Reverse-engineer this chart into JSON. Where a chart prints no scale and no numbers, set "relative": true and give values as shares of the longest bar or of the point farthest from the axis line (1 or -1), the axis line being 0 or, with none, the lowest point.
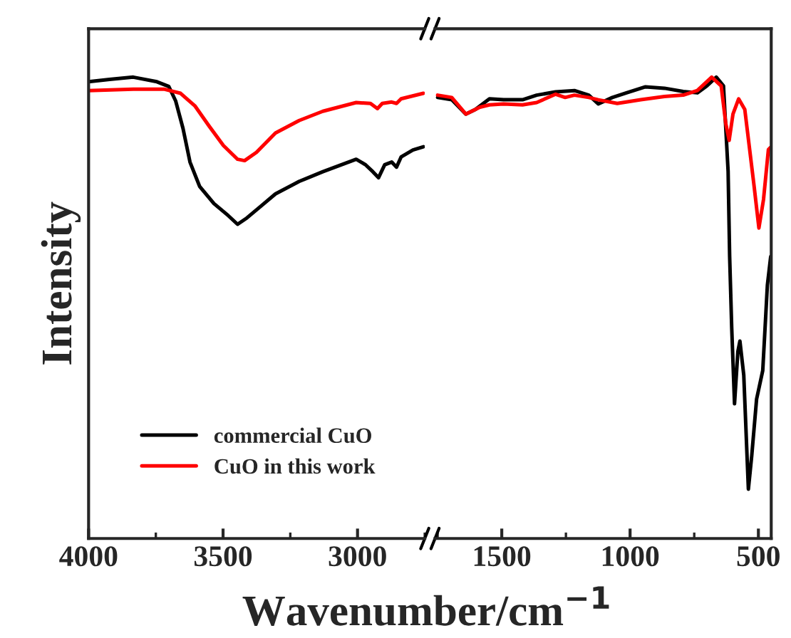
{
  "chart_data": [
    {
      "type": "line",
      "relative": true,
      "ylabel": "Intensity",
      "xlabel": "Wavenumber/cm$^{−1}$",
      "xlim": [
        4000,
        2750
      ],
      "xticks": [
        4000,
        3500,
        3000
      ],
      "legend": "bottom left",
      "line_style": "solid",
      "marker": "none",
      "series": [
        {
          "name": "commercial CuO",
          "color": "#000000",
          "x": [
            4000,
            3922,
            3834,
            3746,
            3702,
            3676,
            3649,
            3623,
            3587,
            3534,
            3481,
            3446,
            3411,
            3358,
            3305,
            3217,
            3129,
            3005,
            2970,
            2943,
            2922,
            2899,
            2873,
            2855,
            2838,
            2794,
            2755
          ],
          "values": [
            0.99,
            0.995,
            1.0,
            0.99,
            0.98,
            0.948,
            0.889,
            0.816,
            0.763,
            0.726,
            0.7,
            0.681,
            0.695,
            0.721,
            0.747,
            0.774,
            0.795,
            0.822,
            0.81,
            0.795,
            0.782,
            0.81,
            0.816,
            0.805,
            0.827,
            0.842,
            0.849
          ]
        },
        {
          "name": "CuO in this work",
          "color": "#ff0000",
          "x": [
            4000,
            3834,
            3720,
            3658,
            3605,
            3552,
            3499,
            3446,
            3420,
            3376,
            3305,
            3217,
            3129,
            3005,
            2952,
            2926,
            2908,
            2873,
            2855,
            2838,
            2755
          ],
          "values": [
            0.971,
            0.974,
            0.974,
            0.965,
            0.938,
            0.894,
            0.852,
            0.822,
            0.819,
            0.837,
            0.879,
            0.906,
            0.926,
            0.945,
            0.943,
            0.932,
            0.943,
            0.946,
            0.943,
            0.953,
            0.965
          ]
        }
      ]
    },
    {
      "type": "line",
      "relative": true,
      "xlim": [
        1760,
        450
      ],
      "xticks": [
        1500,
        1000,
        500
      ],
      "tick_labels": "x",
      "line_style": "solid",
      "marker": "none",
      "series": [
        {
          "color": "#000000",
          "x": [
            1750,
            1695,
            1640,
            1603,
            1548,
            1493,
            1419,
            1364,
            1290,
            1217,
            1161,
            1124,
            1069,
            1014,
            940,
            866,
            793,
            738,
            701,
            664,
            636,
            618,
            612,
            604,
            593,
            580,
            572,
            557,
            539,
            526,
            507,
            483,
            465,
            452
          ],
          "values": [
            0.956,
            0.951,
            0.92,
            0.93,
            0.953,
            0.951,
            0.951,
            0.961,
            0.968,
            0.971,
            0.961,
            0.942,
            0.956,
            0.966,
            0.979,
            0.976,
            0.969,
            0.966,
            0.981,
            1.0,
            0.981,
            0.796,
            0.611,
            0.457,
            0.292,
            0.405,
            0.428,
            0.354,
            0.107,
            0.179,
            0.302,
            0.364,
            0.549,
            0.611
          ]
        },
        {
          "color": "#ff0000",
          "x": [
            1750,
            1695,
            1640,
            1585,
            1548,
            1493,
            1419,
            1364,
            1290,
            1253,
            1217,
            1161,
            1124,
            1050,
            958,
            866,
            793,
            738,
            682,
            645,
            627,
            614,
            599,
            577,
            553,
            517,
            498,
            480,
            461,
            452
          ],
          "values": [
            0.961,
            0.956,
            0.92,
            0.935,
            0.94,
            0.942,
            0.94,
            0.945,
            0.963,
            0.956,
            0.961,
            0.956,
            0.951,
            0.943,
            0.951,
            0.958,
            0.961,
            0.971,
            1.0,
            0.981,
            0.899,
            0.863,
            0.92,
            0.953,
            0.93,
            0.765,
            0.673,
            0.735,
            0.843,
            0.848
          ]
        }
      ]
    }
  ]
}
